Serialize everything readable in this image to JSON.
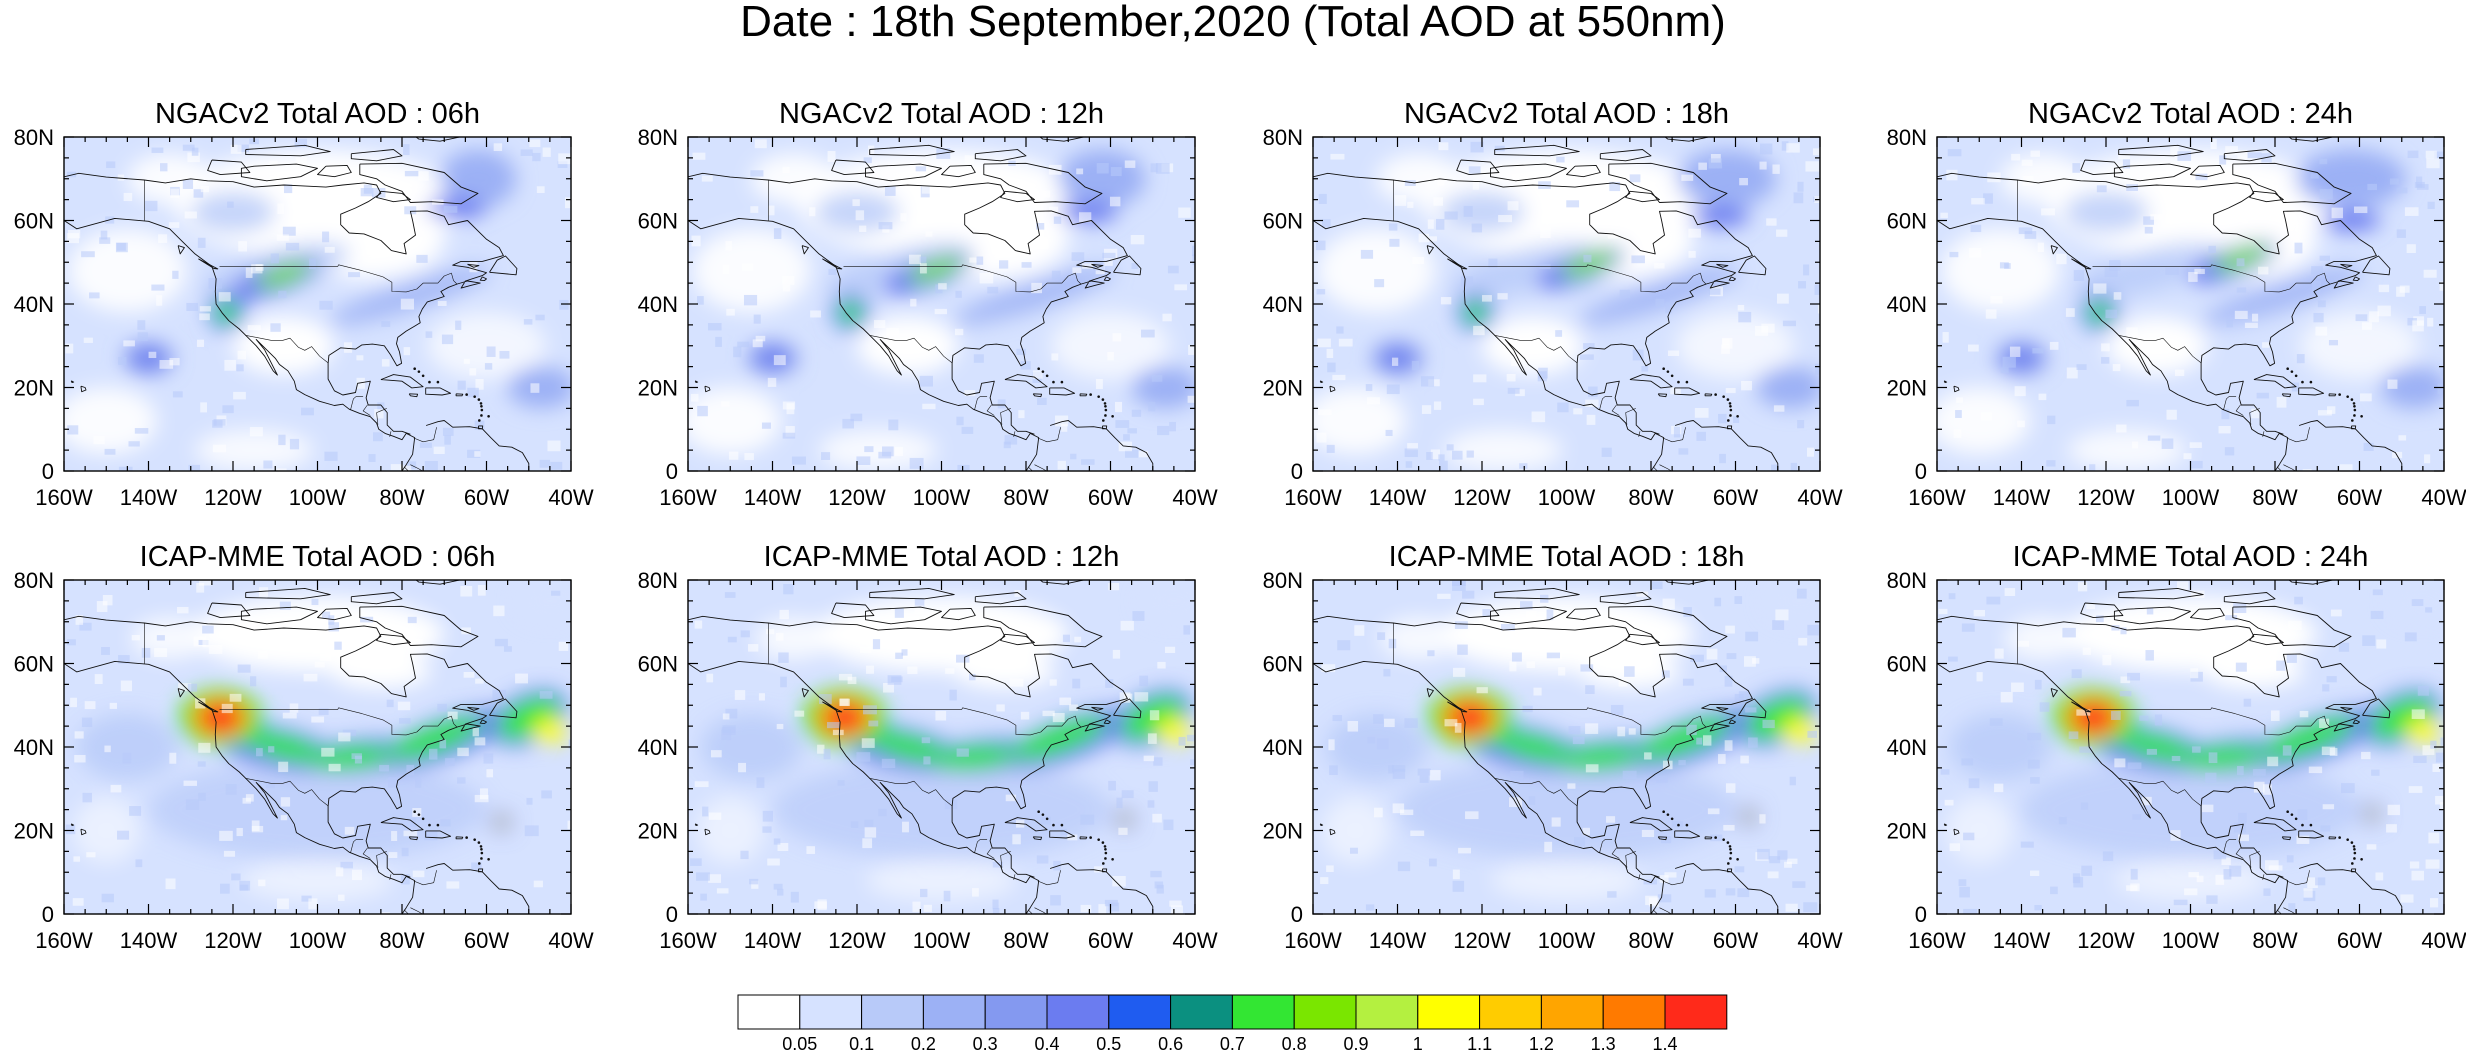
{
  "title": "Date : 18th September,2020 (Total AOD at 550nm)",
  "panels": [
    {
      "title": "NGACv2 Total AOD : 06h",
      "model": "NGACv2",
      "hour": 6
    },
    {
      "title": "NGACv2 Total AOD : 12h",
      "model": "NGACv2",
      "hour": 12
    },
    {
      "title": "NGACv2 Total AOD : 18h",
      "model": "NGACv2",
      "hour": 18
    },
    {
      "title": "NGACv2 Total AOD : 24h",
      "model": "NGACv2",
      "hour": 24
    },
    {
      "title": "ICAP-MME Total AOD : 06h",
      "model": "ICAP-MME",
      "hour": 6
    },
    {
      "title": "ICAP-MME Total AOD : 12h",
      "model": "ICAP-MME",
      "hour": 12
    },
    {
      "title": "ICAP-MME Total AOD : 18h",
      "model": "ICAP-MME",
      "hour": 18
    },
    {
      "title": "ICAP-MME Total AOD : 24h",
      "model": "ICAP-MME",
      "hour": 24
    }
  ],
  "map_extent": {
    "lon_min": -160,
    "lon_max": -40,
    "lat_min": 0,
    "lat_max": 80
  },
  "x_tick_labels": [
    "160W",
    "140W",
    "120W",
    "100W",
    "80W",
    "60W",
    "40W"
  ],
  "y_tick_labels": [
    "0",
    "20N",
    "40N",
    "60N",
    "80N"
  ],
  "colorbar": {
    "labels": [
      "0.05",
      "0.1",
      "0.2",
      "0.3",
      "0.4",
      "0.5",
      "0.6",
      "0.7",
      "0.8",
      "0.9",
      "1",
      "1.1",
      "1.2",
      "1.3",
      "1.4"
    ],
    "colors": [
      "#ffffff",
      "#d6e2ff",
      "#b8caf9",
      "#9cb1f5",
      "#8499f0",
      "#6b7cf0",
      "#1f5cf0",
      "#0b9080",
      "#33e633",
      "#7ae600",
      "#b4f040",
      "#ffff00",
      "#ffcc00",
      "#ffa500",
      "#ff7a00",
      "#ff2a1a"
    ]
  }
}
